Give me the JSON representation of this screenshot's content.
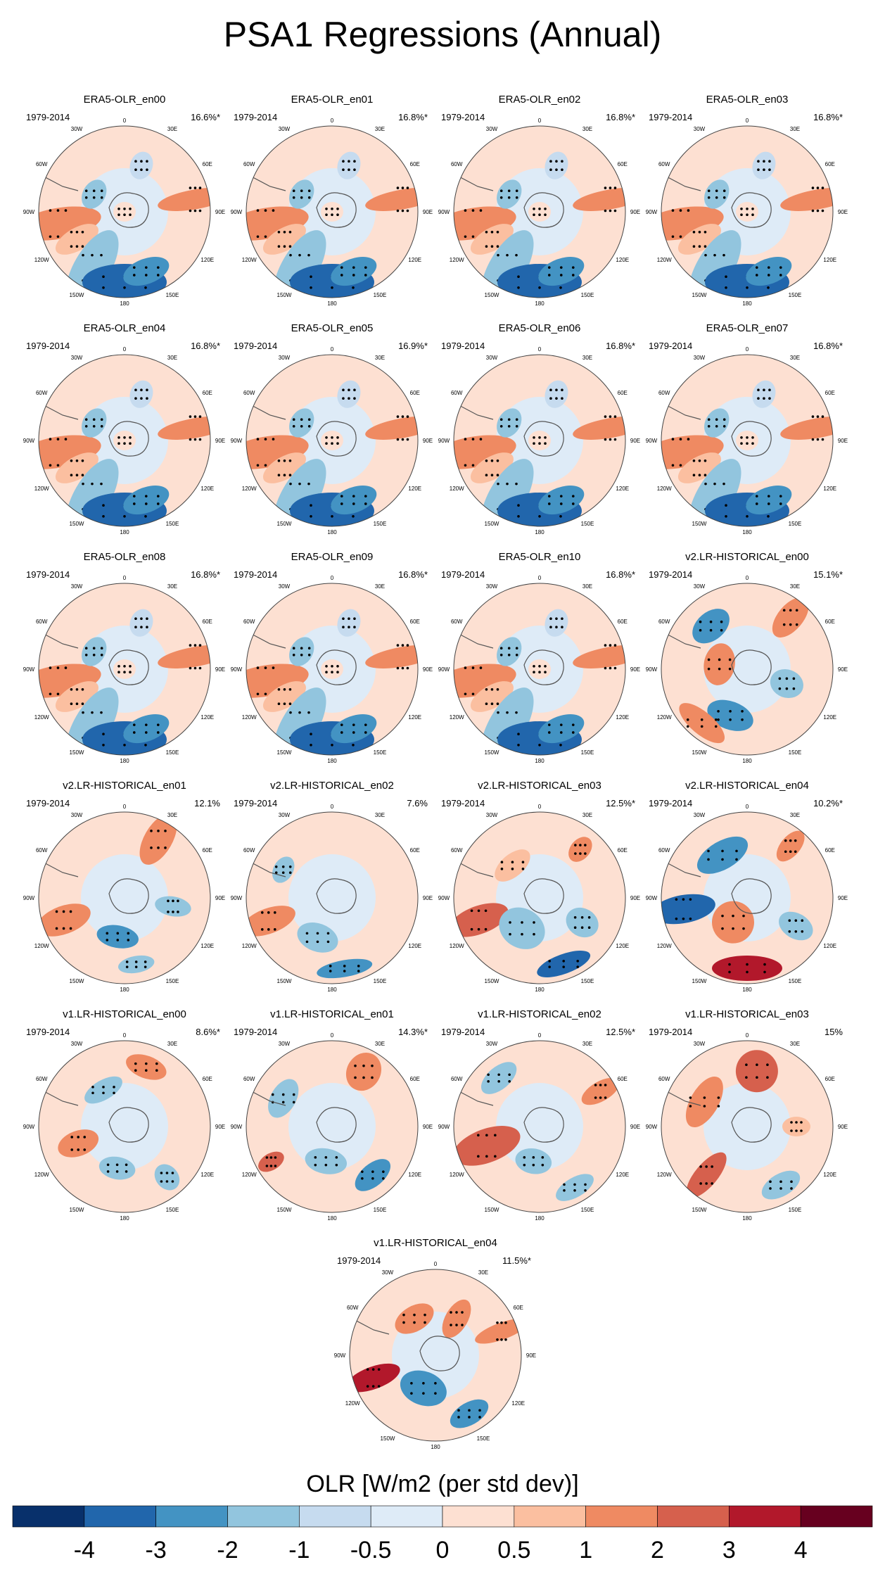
{
  "title": "PSA1 Regressions (Annual)",
  "colorbar": {
    "label": "OLR [W/m2 (per std dev)]",
    "levels": [
      "-4",
      "-3",
      "-2",
      "-1",
      "-0.5",
      "0",
      "0.5",
      "1",
      "2",
      "3",
      "4"
    ],
    "colors": [
      "#08306b",
      "#2166ac",
      "#4393c3",
      "#92c5de",
      "#c6dbef",
      "#deebf7",
      "#fde0d2",
      "#fbbfa0",
      "#ef8a62",
      "#d6604d",
      "#b2182b",
      "#67001f"
    ]
  },
  "map_labels": {
    "lon": [
      "0",
      "30E",
      "60E",
      "90E",
      "120E",
      "150E",
      "180",
      "150W",
      "120W",
      "90W",
      "60W",
      "30W"
    ]
  },
  "chart_data": {
    "type": "map",
    "projection": "south polar stereographic",
    "variable": "OLR regression on PSA1",
    "units": "W/m2 per std dev",
    "panels": [
      {
        "name": "ERA5-OLR_en00",
        "period": "1979-2014",
        "pct": "16.6%*",
        "pattern": "era5"
      },
      {
        "name": "ERA5-OLR_en01",
        "period": "1979-2014",
        "pct": "16.8%*",
        "pattern": "era5"
      },
      {
        "name": "ERA5-OLR_en02",
        "period": "1979-2014",
        "pct": "16.8%*",
        "pattern": "era5"
      },
      {
        "name": "ERA5-OLR_en03",
        "period": "1979-2014",
        "pct": "16.8%*",
        "pattern": "era5"
      },
      {
        "name": "ERA5-OLR_en04",
        "period": "1979-2014",
        "pct": "16.8%*",
        "pattern": "era5"
      },
      {
        "name": "ERA5-OLR_en05",
        "period": "1979-2014",
        "pct": "16.9%*",
        "pattern": "era5"
      },
      {
        "name": "ERA5-OLR_en06",
        "period": "1979-2014",
        "pct": "16.8%*",
        "pattern": "era5"
      },
      {
        "name": "ERA5-OLR_en07",
        "period": "1979-2014",
        "pct": "16.8%*",
        "pattern": "era5"
      },
      {
        "name": "ERA5-OLR_en08",
        "period": "1979-2014",
        "pct": "16.8%*",
        "pattern": "era5"
      },
      {
        "name": "ERA5-OLR_en09",
        "period": "1979-2014",
        "pct": "16.8%*",
        "pattern": "era5"
      },
      {
        "name": "ERA5-OLR_en10",
        "period": "1979-2014",
        "pct": "16.8%*",
        "pattern": "era5"
      },
      {
        "name": "v2.LR-HISTORICAL_en00",
        "period": "1979-2014",
        "pct": "15.1%*",
        "pattern": "v2a"
      },
      {
        "name": "v2.LR-HISTORICAL_en01",
        "period": "1979-2014",
        "pct": "12.1%",
        "pattern": "v2b"
      },
      {
        "name": "v2.LR-HISTORICAL_en02",
        "period": "1979-2014",
        "pct": "7.6%",
        "pattern": "v2c"
      },
      {
        "name": "v2.LR-HISTORICAL_en03",
        "period": "1979-2014",
        "pct": "12.5%*",
        "pattern": "v2d"
      },
      {
        "name": "v2.LR-HISTORICAL_en04",
        "period": "1979-2014",
        "pct": "10.2%*",
        "pattern": "v2e"
      },
      {
        "name": "v1.LR-HISTORICAL_en00",
        "period": "1979-2014",
        "pct": "8.6%*",
        "pattern": "v1a"
      },
      {
        "name": "v1.LR-HISTORICAL_en01",
        "period": "1979-2014",
        "pct": "14.3%*",
        "pattern": "v1b"
      },
      {
        "name": "v1.LR-HISTORICAL_en02",
        "period": "1979-2014",
        "pct": "12.5%*",
        "pattern": "v1c"
      },
      {
        "name": "v1.LR-HISTORICAL_en03",
        "period": "1979-2014",
        "pct": "15%",
        "pattern": "v1d"
      },
      {
        "name": "v1.LR-HISTORICAL_en04",
        "period": "1979-2014",
        "pct": "11.5%*",
        "pattern": "v1e"
      }
    ]
  }
}
